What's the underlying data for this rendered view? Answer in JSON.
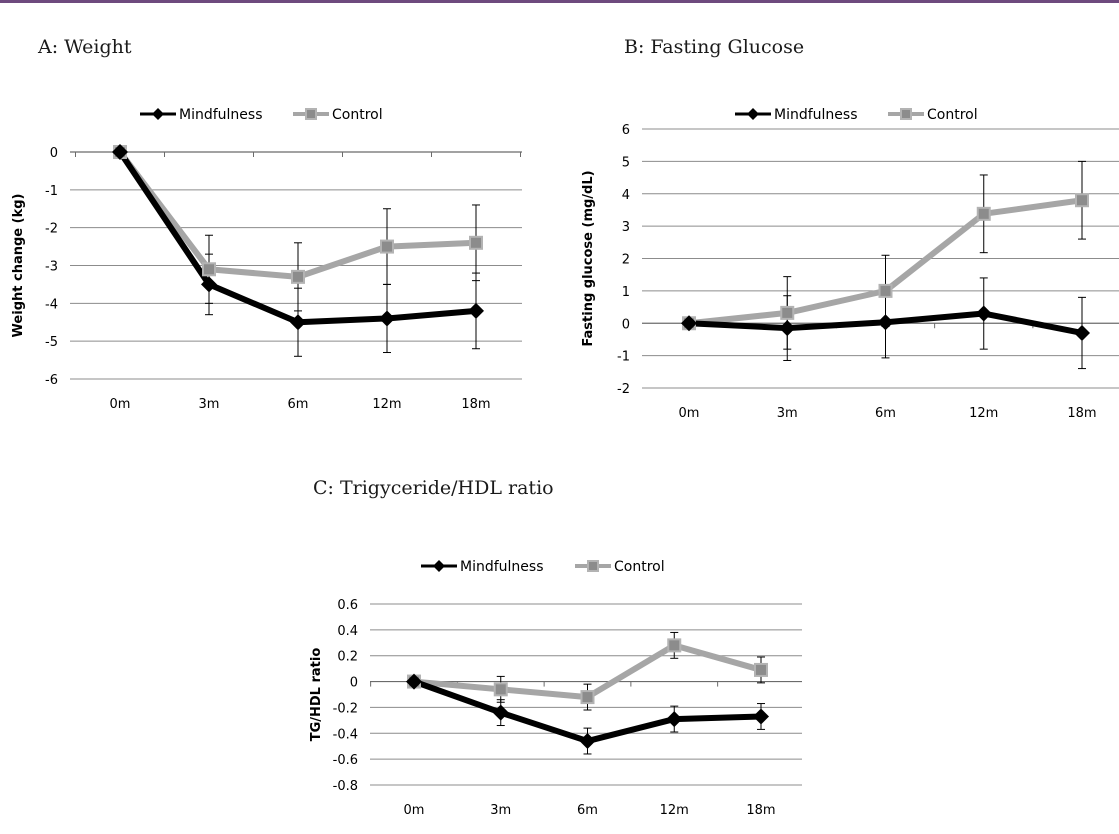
{
  "page": {
    "accent_color": "#6e4a7e"
  },
  "panels": {
    "a": {
      "title": "A: Weight"
    },
    "b": {
      "title": "B: Fasting Glucose"
    },
    "c": {
      "title": "C: Trigyceride/HDL ratio"
    }
  },
  "colors": {
    "mindfulness": "#000000",
    "control_line": "#a6a6a6",
    "control_marker_fill": "#8c8c8c",
    "control_marker_edge": "#b3b3b3",
    "gridline": "#8c8c8c"
  },
  "chart_data": [
    {
      "id": "weight",
      "type": "line",
      "title": "A: Weight",
      "xlabel": "",
      "ylabel": "Weight change (kg)",
      "categories": [
        "0m",
        "3m",
        "6m",
        "12m",
        "18m"
      ],
      "ylim": [
        -6,
        0
      ],
      "yticks": [
        0,
        -1,
        -2,
        -3,
        -4,
        -5,
        -6
      ],
      "ytick_labels": [
        "0",
        "-1",
        "-2",
        "-3",
        "-4",
        "-5",
        "-6"
      ],
      "grid": true,
      "legend": "top",
      "error_bars": true,
      "series": [
        {
          "name": "Mindfulness",
          "marker": "diamond",
          "values": [
            0,
            -3.5,
            -4.5,
            -4.4,
            -4.2
          ],
          "errors": [
            0,
            0.8,
            0.9,
            0.9,
            1.0
          ]
        },
        {
          "name": "Control",
          "marker": "square",
          "values": [
            0,
            -3.1,
            -3.3,
            -2.5,
            -2.4
          ],
          "errors": [
            0,
            0.9,
            0.9,
            1.0,
            1.0
          ]
        }
      ]
    },
    {
      "id": "glucose",
      "type": "line",
      "title": "B: Fasting Glucose",
      "xlabel": "",
      "ylabel": "Fasting glucose (mg/dL)",
      "categories": [
        "0m",
        "3m",
        "6m",
        "12m",
        "18m"
      ],
      "ylim": [
        -2,
        6
      ],
      "yticks": [
        6,
        5,
        4,
        3,
        2,
        1,
        0,
        -1,
        -2
      ],
      "ytick_labels": [
        "6",
        "5",
        "4",
        "3",
        "2",
        "1",
        "0",
        "-1",
        "-2"
      ],
      "grid": true,
      "legend": "top",
      "error_bars": true,
      "series": [
        {
          "name": "Mindfulness",
          "marker": "diamond",
          "values": [
            0,
            -0.15,
            0.03,
            0.3,
            -0.3
          ],
          "errors": [
            0,
            1.0,
            1.1,
            1.1,
            1.1
          ]
        },
        {
          "name": "Control",
          "marker": "square",
          "values": [
            0,
            0.32,
            1.0,
            3.38,
            3.8
          ],
          "errors": [
            0,
            1.12,
            1.1,
            1.2,
            1.2
          ]
        }
      ]
    },
    {
      "id": "tg_hdl",
      "type": "line",
      "title": "C: Trigyceride/HDL ratio",
      "xlabel": "",
      "ylabel": "TG/HDL ratio",
      "categories": [
        "0m",
        "3m",
        "6m",
        "12m",
        "18m"
      ],
      "ylim": [
        -0.8,
        0.6
      ],
      "yticks": [
        0.6,
        0.4,
        0.2,
        0,
        -0.2,
        -0.4,
        -0.6,
        -0.8
      ],
      "ytick_labels": [
        "0.6",
        "0.4",
        "0.2",
        "0",
        "-0.2",
        "-0.4",
        "-0.6",
        "-0.8"
      ],
      "grid": true,
      "legend": "top",
      "error_bars": true,
      "series": [
        {
          "name": "Mindfulness",
          "marker": "diamond",
          "values": [
            0,
            -0.24,
            -0.46,
            -0.29,
            -0.27
          ],
          "errors": [
            0,
            0.1,
            0.1,
            0.1,
            0.1
          ]
        },
        {
          "name": "Control",
          "marker": "square",
          "values": [
            0,
            -0.06,
            -0.12,
            0.28,
            0.09
          ],
          "errors": [
            0,
            0.1,
            0.1,
            0.1,
            0.1
          ]
        }
      ]
    }
  ]
}
